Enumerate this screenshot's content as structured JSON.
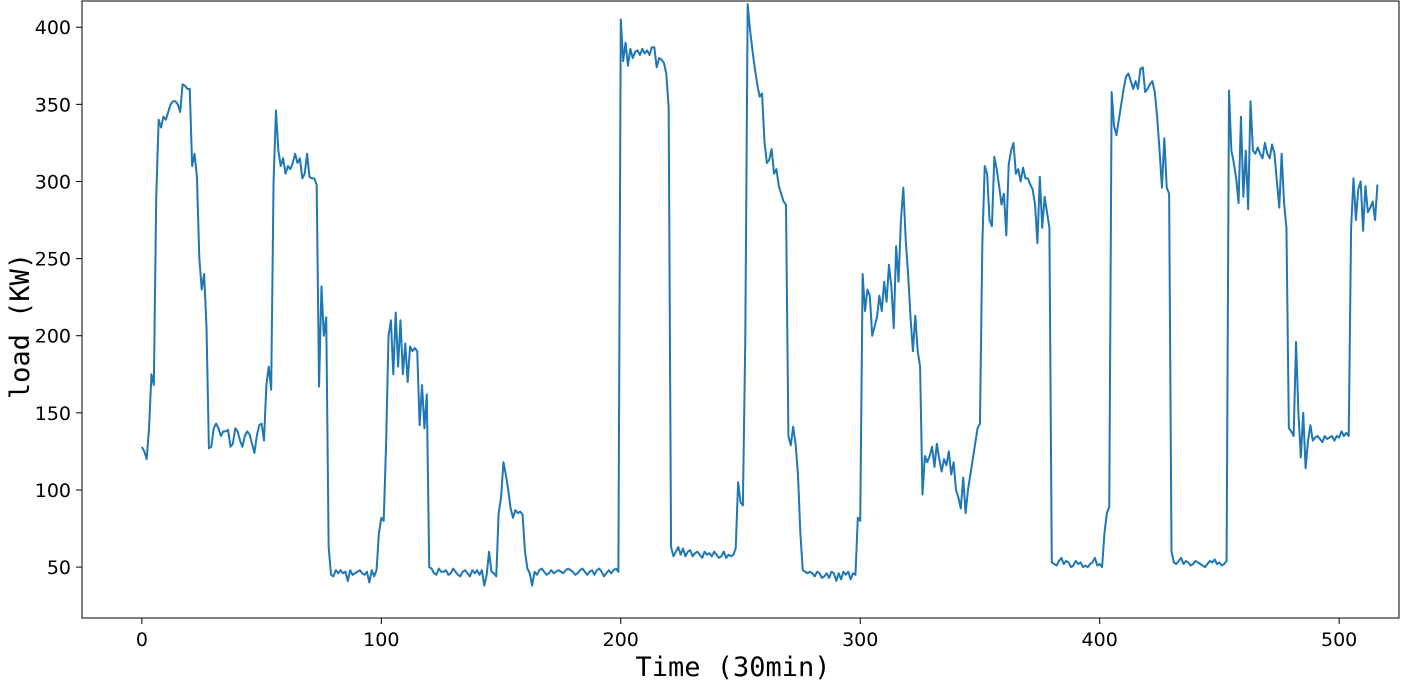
{
  "chart_data": {
    "type": "line",
    "title": "",
    "xlabel": "Time (30min)",
    "ylabel": "load (KW)",
    "xlim": [
      -25,
      525
    ],
    "ylim": [
      17,
      417
    ],
    "xticks": [
      0,
      100,
      200,
      300,
      400,
      500
    ],
    "yticks": [
      50,
      100,
      150,
      200,
      250,
      300,
      350,
      400
    ],
    "xtick_labels": [
      "0",
      "100",
      "200",
      "300",
      "400",
      "500"
    ],
    "ytick_labels": [
      "50",
      "100",
      "150",
      "200",
      "250",
      "300",
      "350",
      "400"
    ],
    "grid": false,
    "legend": "none",
    "line_color": "#1f77b4",
    "series": [
      {
        "x_start": 0,
        "x_step": 1,
        "values": [
          128,
          125,
          120,
          140,
          175,
          168,
          290,
          340,
          335,
          342,
          340,
          345,
          350,
          352,
          352,
          350,
          345,
          363,
          362,
          360,
          360,
          310,
          318,
          303,
          250,
          230,
          240,
          205,
          127,
          128,
          140,
          143,
          140,
          135,
          138,
          138,
          139,
          128,
          130,
          140,
          138,
          132,
          128,
          135,
          138,
          136,
          130,
          124,
          135,
          142,
          143,
          132,
          168,
          180,
          165,
          300,
          346,
          320,
          310,
          315,
          305,
          310,
          308,
          312,
          318,
          312,
          315,
          302,
          305,
          318,
          303,
          302,
          302,
          298,
          167,
          232,
          200,
          212,
          63,
          45,
          44,
          48,
          46,
          48,
          46,
          47,
          41,
          48,
          45,
          46,
          47,
          48,
          46,
          45,
          47,
          40,
          48,
          44,
          48,
          72,
          82,
          80,
          130,
          200,
          210,
          175,
          215,
          180,
          210,
          175,
          195,
          170,
          193,
          190,
          192,
          190,
          142,
          168,
          140,
          162,
          50,
          49,
          46,
          45,
          49,
          47,
          47,
          48,
          45,
          46,
          49,
          47,
          45,
          44,
          47,
          48,
          46,
          44,
          48,
          46,
          48,
          45,
          48,
          38,
          45,
          60,
          47,
          46,
          44,
          85,
          95,
          118,
          110,
          100,
          88,
          82,
          87,
          85,
          86,
          84,
          60,
          49,
          46,
          38,
          47,
          45,
          48,
          49,
          47,
          45,
          46,
          48,
          46,
          47,
          48,
          47,
          46,
          48,
          49,
          48,
          47,
          45,
          46,
          48,
          49,
          47,
          45,
          47,
          48,
          45,
          48,
          49,
          47,
          44,
          46,
          48,
          46,
          48,
          49,
          47,
          405,
          378,
          390,
          375,
          386,
          380,
          384,
          385,
          382,
          386,
          383,
          385,
          382,
          387,
          387,
          374,
          380,
          379,
          377,
          370,
          348,
          63,
          57,
          60,
          63,
          58,
          62,
          57,
          60,
          61,
          57,
          59,
          60,
          58,
          56,
          60,
          58,
          59,
          57,
          60,
          58,
          56,
          57,
          60,
          56,
          58,
          57,
          58,
          62,
          105,
          92,
          90,
          198,
          415,
          398,
          385,
          373,
          363,
          355,
          357,
          326,
          312,
          314,
          321,
          305,
          308,
          297,
          292,
          287,
          285,
          135,
          129,
          141,
          130,
          110,
          72,
          48,
          47,
          46,
          47,
          46,
          44,
          47,
          46,
          43,
          44,
          46,
          43,
          47,
          46,
          41,
          46,
          42,
          47,
          45,
          47,
          42,
          46,
          45,
          82,
          80,
          240,
          216,
          230,
          226,
          200,
          206,
          212,
          226,
          216,
          235,
          222,
          246,
          232,
          205,
          258,
          235,
          275,
          296,
          262,
          240,
          212,
          190,
          213,
          190,
          180,
          97,
          122,
          118,
          122,
          128,
          115,
          130,
          120,
          112,
          120,
          116,
          125,
          110,
          118,
          100,
          95,
          88,
          108,
          85,
          100,
          110,
          120,
          130,
          140,
          143,
          260,
          310,
          305,
          275,
          271,
          316,
          308,
          297,
          285,
          292,
          265,
          311,
          320,
          325,
          305,
          308,
          300,
          309,
          302,
          302,
          298,
          295,
          285,
          260,
          303,
          270,
          290,
          280,
          270,
          53,
          52,
          51,
          54,
          56,
          52,
          54,
          53,
          50,
          51,
          54,
          52,
          53,
          50,
          51,
          50,
          52,
          53,
          56,
          51,
          52,
          50,
          72,
          85,
          89,
          358,
          336,
          330,
          340,
          350,
          360,
          368,
          370,
          365,
          360,
          365,
          360,
          373,
          374,
          358,
          360,
          363,
          365,
          358,
          342,
          320,
          296,
          328,
          296,
          292,
          60,
          53,
          52,
          54,
          56,
          52,
          54,
          53,
          51,
          52,
          54,
          53,
          52,
          51,
          50,
          52,
          54,
          53,
          55,
          52,
          53,
          51,
          52,
          54,
          359,
          320,
          312,
          302,
          286,
          342,
          290,
          320,
          282,
          352,
          320,
          318,
          322,
          318,
          315,
          325,
          318,
          315,
          324,
          318,
          300,
          283,
          318,
          286,
          270,
          140,
          138,
          135,
          196,
          150,
          121,
          150,
          114,
          132,
          142,
          132,
          134,
          135,
          133,
          131,
          135,
          133,
          134,
          135,
          132,
          135,
          134,
          138,
          135,
          137,
          135,
          270,
          302,
          275,
          295,
          300,
          268,
          297,
          280,
          283,
          287,
          275,
          298
        ]
      }
    ]
  }
}
